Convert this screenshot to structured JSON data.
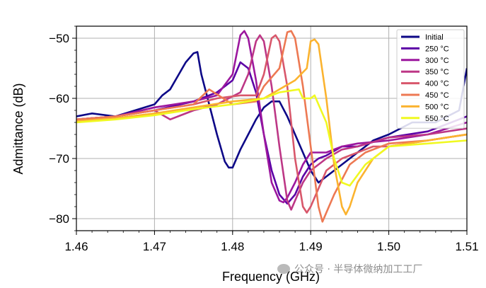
{
  "chart_data": {
    "type": "line",
    "xlabel": "Frequency (GHz)",
    "ylabel": "Admittance (dB)",
    "xlim": [
      1.46,
      1.51
    ],
    "ylim": [
      -82,
      -48
    ],
    "xticks": [
      "1.46",
      "1.47",
      "1.48",
      "1.49",
      "1.50",
      "1.51"
    ],
    "yticks": [
      "−50",
      "−60",
      "−70",
      "−80"
    ],
    "grid": true,
    "legend_position": "top-right",
    "series": [
      {
        "name": "Initial",
        "color": "#0d0887",
        "x": [
          1.46,
          1.462,
          1.465,
          1.47,
          1.471,
          1.472,
          1.474,
          1.475,
          1.4755,
          1.476,
          1.477,
          1.478,
          1.479,
          1.4795,
          1.48,
          1.481,
          1.482,
          1.483,
          1.484,
          1.485,
          1.486,
          1.487,
          1.488,
          1.489,
          1.49,
          1.491,
          1.492,
          1.495,
          1.498,
          1.5,
          1.503,
          1.506,
          1.509,
          1.51
        ],
        "y": [
          -63,
          -62.5,
          -63,
          -61,
          -59.5,
          -58.5,
          -54,
          -52.5,
          -52.3,
          -56,
          -61,
          -66,
          -70.5,
          -71.5,
          -71.5,
          -68.5,
          -66,
          -63.5,
          -61.5,
          -60.5,
          -60.5,
          -63,
          -66,
          -69,
          -72,
          -74,
          -73,
          -70,
          -67,
          -66,
          -64,
          -64,
          -62,
          -55
        ]
      },
      {
        "name": "250 °C",
        "color": "#5c01a6",
        "x": [
          1.46,
          1.465,
          1.47,
          1.475,
          1.478,
          1.48,
          1.4805,
          1.481,
          1.482,
          1.483,
          1.484,
          1.485,
          1.486,
          1.487,
          1.488,
          1.489,
          1.49,
          1.491,
          1.492,
          1.494,
          1.496,
          1.5,
          1.505,
          1.51
        ],
        "y": [
          -63.5,
          -63,
          -62,
          -60.5,
          -59,
          -57,
          -55.5,
          -54,
          -55,
          -59,
          -66,
          -72,
          -76,
          -77.5,
          -76,
          -73,
          -71,
          -70,
          -69.5,
          -68,
          -68,
          -66.5,
          -65.5,
          -63
        ]
      },
      {
        "name": "300 °C",
        "color": "#9c179e",
        "x": [
          1.46,
          1.465,
          1.47,
          1.475,
          1.478,
          1.48,
          1.481,
          1.4815,
          1.482,
          1.483,
          1.484,
          1.485,
          1.486,
          1.4865,
          1.487,
          1.488,
          1.489,
          1.49,
          1.492,
          1.494,
          1.496,
          1.5,
          1.505,
          1.51
        ],
        "y": [
          -63.5,
          -63,
          -61.5,
          -60.5,
          -59.5,
          -56,
          -49.5,
          -48.8,
          -50,
          -57,
          -66,
          -74,
          -77,
          -77.3,
          -76.5,
          -74,
          -71,
          -69,
          -69,
          -68,
          -67.5,
          -67,
          -66,
          -64
        ]
      },
      {
        "name": "350 °C",
        "color": "#bd3786",
        "x": [
          1.46,
          1.465,
          1.47,
          1.472,
          1.475,
          1.478,
          1.481,
          1.482,
          1.483,
          1.4835,
          1.484,
          1.485,
          1.486,
          1.487,
          1.4875,
          1.488,
          1.489,
          1.49,
          1.492,
          1.494,
          1.496,
          1.5,
          1.505,
          1.51
        ],
        "y": [
          -63.5,
          -63,
          -62,
          -63.5,
          -62,
          -61,
          -59,
          -56,
          -50.5,
          -49.5,
          -50.5,
          -58,
          -68,
          -77,
          -78.5,
          -77,
          -74,
          -72,
          -70,
          -68.5,
          -68,
          -66.5,
          -66,
          -65
        ]
      },
      {
        "name": "400 °C",
        "color": "#d8576b",
        "x": [
          1.46,
          1.465,
          1.47,
          1.475,
          1.478,
          1.481,
          1.483,
          1.484,
          1.485,
          1.4855,
          1.486,
          1.487,
          1.488,
          1.489,
          1.4895,
          1.49,
          1.491,
          1.492,
          1.494,
          1.496,
          1.498,
          1.5,
          1.505,
          1.51
        ],
        "y": [
          -63.5,
          -63,
          -62,
          -61,
          -60,
          -59.5,
          -59.5,
          -56,
          -50,
          -49.5,
          -50.5,
          -58,
          -70,
          -78,
          -79,
          -78,
          -75,
          -72,
          -70,
          -69,
          -68,
          -68,
          -67,
          -66
        ]
      },
      {
        "name": "450 °C",
        "color": "#ed7953",
        "x": [
          1.46,
          1.465,
          1.47,
          1.475,
          1.477,
          1.48,
          1.483,
          1.484,
          1.486,
          1.487,
          1.4875,
          1.488,
          1.489,
          1.49,
          1.491,
          1.4915,
          1.492,
          1.493,
          1.495,
          1.497,
          1.5,
          1.505,
          1.51
        ],
        "y": [
          -63.5,
          -63,
          -62,
          -61,
          -58.5,
          -61,
          -60.5,
          -58,
          -55,
          -49,
          -48.8,
          -50,
          -58,
          -68,
          -78,
          -80.5,
          -79,
          -76,
          -71,
          -69,
          -67.5,
          -67,
          -66
        ]
      },
      {
        "name": "500 °C",
        "color": "#fbb32f",
        "x": [
          1.46,
          1.465,
          1.47,
          1.475,
          1.48,
          1.484,
          1.486,
          1.488,
          1.4895,
          1.49,
          1.4905,
          1.491,
          1.492,
          1.493,
          1.494,
          1.4945,
          1.495,
          1.496,
          1.498,
          1.5,
          1.505,
          1.51
        ],
        "y": [
          -63.8,
          -63.3,
          -62.5,
          -61.5,
          -60.5,
          -60,
          -58.5,
          -57,
          -55,
          -50.5,
          -50.2,
          -51,
          -60,
          -71,
          -78,
          -79.3,
          -78,
          -74,
          -70,
          -68,
          -67,
          -66
        ]
      },
      {
        "name": "550 °C",
        "color": "#f0f921",
        "x": [
          1.46,
          1.465,
          1.47,
          1.475,
          1.48,
          1.484,
          1.486,
          1.4885,
          1.489,
          1.49,
          1.4905,
          1.491,
          1.492,
          1.493,
          1.494,
          1.495,
          1.497,
          1.5,
          1.505,
          1.51
        ],
        "y": [
          -64,
          -63.5,
          -62.8,
          -61.8,
          -61,
          -60,
          -59,
          -58.5,
          -60,
          -60,
          -59.5,
          -61,
          -64,
          -70,
          -74,
          -74.5,
          -71,
          -68,
          -67.5,
          -67
        ]
      }
    ]
  },
  "watermark": "公众号 · 半导体微纳加工工厂"
}
